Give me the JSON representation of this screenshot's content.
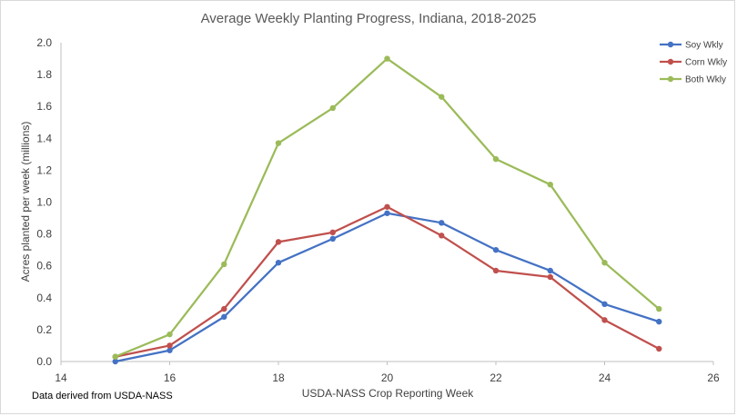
{
  "chart_data": {
    "type": "line",
    "title": "Average Weekly Planting Progress, Indiana, 2018-2025",
    "xlabel": "USDA-NASS Crop Reporting Week",
    "ylabel": "Acres planted per week (millions)",
    "xlim": [
      14,
      26
    ],
    "ylim": [
      0,
      2.0
    ],
    "xticks": [
      14,
      16,
      18,
      20,
      22,
      24,
      26
    ],
    "yticks": [
      0,
      0.2,
      0.4,
      0.6,
      0.8,
      1.0,
      1.2,
      1.4,
      1.6,
      1.8,
      2.0
    ],
    "x": [
      15,
      16,
      17,
      18,
      19,
      20,
      21,
      22,
      23,
      24,
      25
    ],
    "series": [
      {
        "name": "Soy Wkly",
        "color": "#4472c4",
        "values": [
          0.0,
          0.07,
          0.28,
          0.62,
          0.77,
          0.93,
          0.87,
          0.7,
          0.57,
          0.36,
          0.25
        ]
      },
      {
        "name": "Corn Wkly",
        "color": "#c0504d",
        "values": [
          0.03,
          0.1,
          0.33,
          0.75,
          0.81,
          0.97,
          0.79,
          0.57,
          0.53,
          0.26,
          0.08
        ]
      },
      {
        "name": "Both Wkly",
        "color": "#9bbb59",
        "values": [
          0.03,
          0.17,
          0.61,
          1.37,
          1.59,
          1.9,
          1.66,
          1.27,
          1.11,
          0.62,
          0.33
        ]
      }
    ],
    "grid": false,
    "legend_position": "top-right",
    "note": "Data derived from USDA-NASS"
  }
}
